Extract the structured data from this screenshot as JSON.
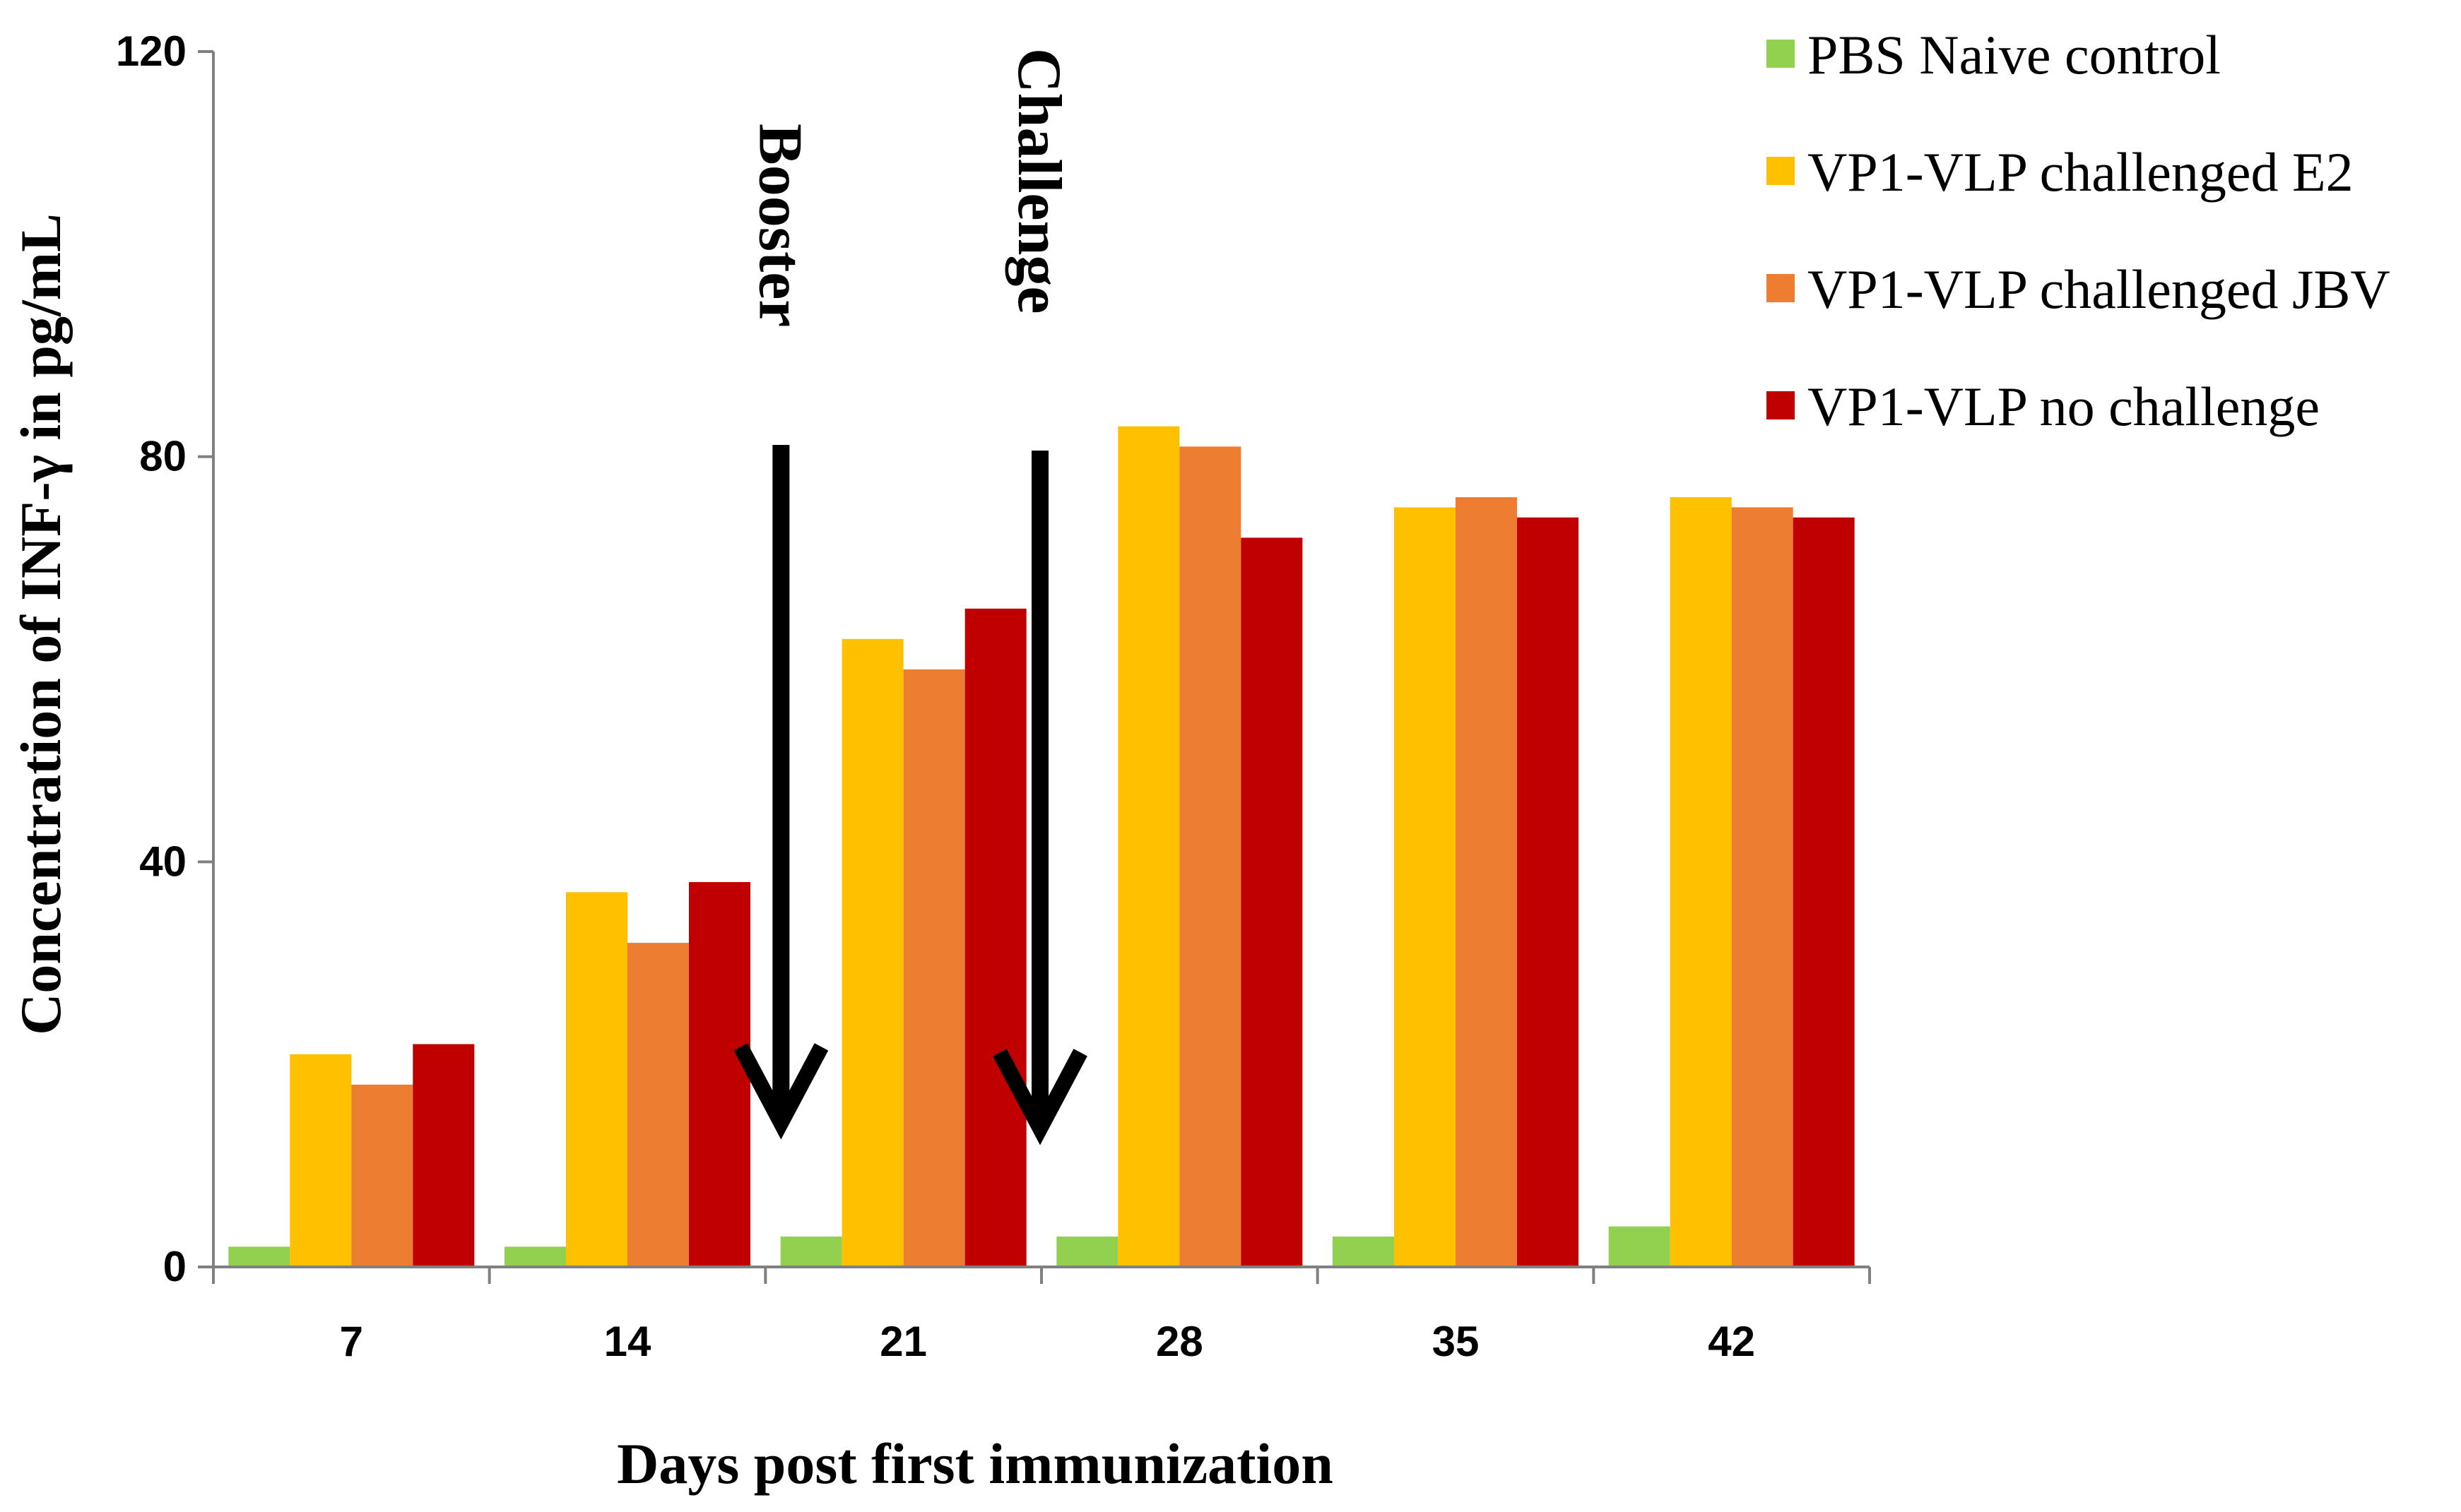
{
  "chart_data": {
    "type": "bar",
    "title": "",
    "xlabel": "Days post first immunization",
    "ylabel": "Concentration of INF-γ in pg/mL",
    "ylim": [
      0,
      120
    ],
    "yticks": [
      "0",
      "40",
      "80",
      "120"
    ],
    "ytick_values": [
      0,
      40,
      80,
      120
    ],
    "categories": [
      "7",
      "14",
      "21",
      "28",
      "35",
      "42"
    ],
    "series": [
      {
        "name": "PBS Naive control",
        "color": "#92D050",
        "values": [
          2,
          2,
          3,
          3,
          3,
          4
        ]
      },
      {
        "name": "VP1-VLP challenged E2",
        "color": "#FFC000",
        "values": [
          21,
          37,
          62,
          83,
          75,
          76
        ]
      },
      {
        "name": "VP1-VLP challenged JBV",
        "color": "#ED7D31",
        "values": [
          18,
          32,
          59,
          81,
          76,
          75
        ]
      },
      {
        "name": "VP1-VLP no challenge",
        "color": "#C00000",
        "values": [
          22,
          38,
          65,
          72,
          74,
          74
        ]
      }
    ],
    "legend_position": "top-right",
    "grid": false,
    "annotations": [
      {
        "label": "Booster",
        "between": [
          "14",
          "21"
        ],
        "arrow": "down"
      },
      {
        "label": "Challenge",
        "between": [
          "21",
          "28"
        ],
        "arrow": "down"
      }
    ]
  }
}
